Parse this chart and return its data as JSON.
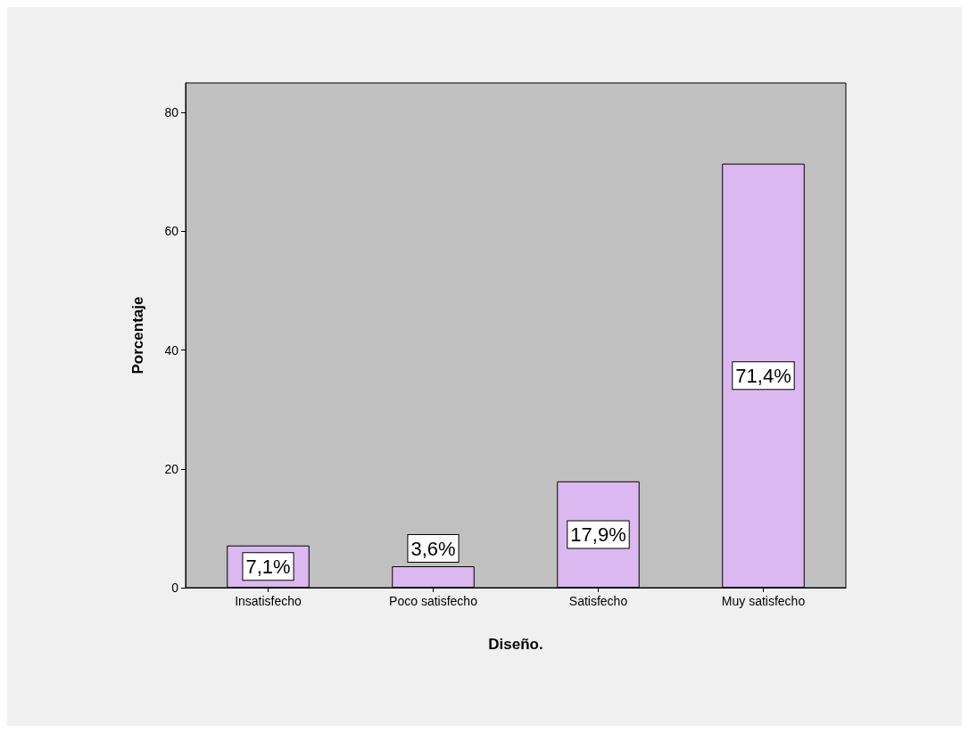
{
  "chart_data": {
    "type": "bar",
    "xlabel": "Diseño.",
    "ylabel": "Porcentaje",
    "categories": [
      "Insatisfecho",
      "Poco satisfecho",
      "Satisfecho",
      "Muy satisfecho"
    ],
    "values": [
      7.1,
      3.6,
      17.9,
      71.4
    ],
    "value_labels": [
      "7,1%",
      "3,6%",
      "17,9%",
      "71,4%"
    ],
    "color": "#dcb8f0",
    "ylim": [
      0,
      85
    ],
    "yticks": [
      0,
      20,
      40,
      60,
      80
    ],
    "grid": false
  }
}
